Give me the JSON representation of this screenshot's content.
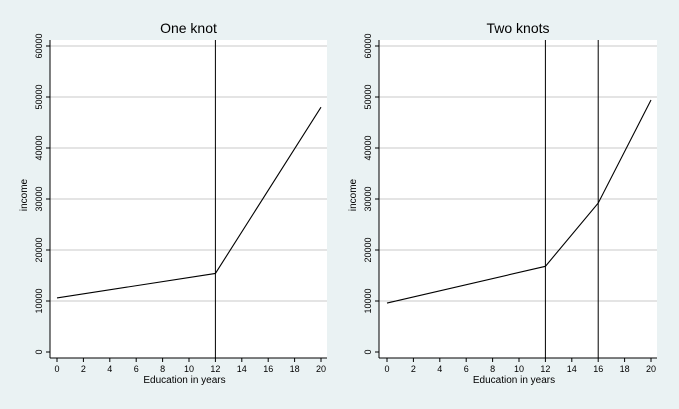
{
  "chart_data": [
    {
      "type": "line",
      "title": "One knot",
      "xlabel": "Education in years",
      "ylabel": "income",
      "xlim": [
        0,
        20
      ],
      "ylim": [
        0,
        60000
      ],
      "xticks": [
        0,
        2,
        4,
        6,
        8,
        10,
        12,
        14,
        16,
        18,
        20
      ],
      "yticks": [
        0,
        10000,
        20000,
        30000,
        40000,
        50000,
        60000
      ],
      "grid": true,
      "knots": [
        12
      ],
      "series": [
        {
          "x": [
            0,
            12,
            20
          ],
          "y": [
            10600,
            15400,
            48000
          ]
        }
      ]
    },
    {
      "type": "line",
      "title": "Two knots",
      "xlabel": "Education in years",
      "ylabel": "income",
      "xlim": [
        0,
        20
      ],
      "ylim": [
        0,
        60000
      ],
      "xticks": [
        0,
        2,
        4,
        6,
        8,
        10,
        12,
        14,
        16,
        18,
        20
      ],
      "yticks": [
        0,
        10000,
        20000,
        30000,
        40000,
        50000,
        60000
      ],
      "grid": true,
      "knots": [
        12,
        16
      ],
      "series": [
        {
          "x": [
            0,
            12,
            16,
            20
          ],
          "y": [
            9600,
            16800,
            29200,
            49400
          ]
        }
      ]
    }
  ]
}
